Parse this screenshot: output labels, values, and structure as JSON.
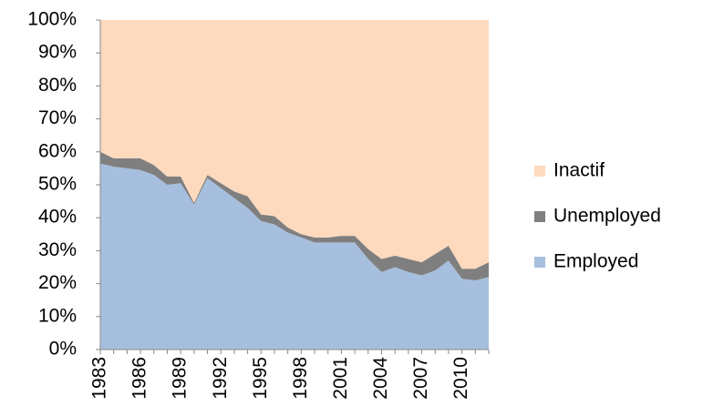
{
  "chart_data": {
    "type": "stacked_area",
    "categories": [
      "1983",
      null,
      null,
      "1986",
      null,
      null,
      "1989",
      null,
      null,
      "1992",
      null,
      null,
      "1995",
      null,
      null,
      "1998",
      null,
      null,
      "2001",
      null,
      null,
      "2004",
      null,
      null,
      "2007",
      null,
      null,
      "2010",
      null,
      null
    ],
    "series": [
      {
        "name": "Employed",
        "color": "#a7bfde",
        "values": [
          56.5,
          55.5,
          55,
          54.5,
          53,
          50,
          50.5,
          44,
          52,
          49,
          46,
          43,
          39,
          38,
          35.5,
          34,
          32.5,
          32.5,
          32.5,
          32.5,
          27.5,
          23.5,
          25,
          23.5,
          22.5,
          24,
          27,
          21.5,
          21,
          22
        ]
      },
      {
        "name": "Unemployed",
        "color": "#7f7f7f",
        "values": [
          3.5,
          2.5,
          3,
          3.5,
          3,
          2.5,
          2,
          0.5,
          1,
          1.5,
          2,
          3.5,
          2,
          2.5,
          1.5,
          1,
          1.5,
          1.5,
          2,
          2,
          3,
          4,
          3.5,
          4,
          4,
          5,
          4.5,
          3,
          3.5,
          4.5
        ]
      },
      {
        "name": "Inactif",
        "color": "#fdd9bd",
        "values": [
          40,
          42,
          42,
          42,
          44,
          47.5,
          47.5,
          55.5,
          47,
          49.5,
          52,
          53.5,
          59,
          59.5,
          63,
          65,
          66,
          66,
          65.5,
          65.5,
          69.5,
          72.5,
          71.5,
          72.5,
          73.5,
          71,
          68.5,
          75.5,
          75.5,
          73.5
        ]
      }
    ],
    "ylim": [
      0,
      100
    ],
    "yticks": [
      {
        "value": 0,
        "label": "0%"
      },
      {
        "value": 10,
        "label": "10%"
      },
      {
        "value": 20,
        "label": "20%"
      },
      {
        "value": 30,
        "label": "30%"
      },
      {
        "value": 40,
        "label": "40%"
      },
      {
        "value": 50,
        "label": "50%"
      },
      {
        "value": 60,
        "label": "60%"
      },
      {
        "value": 70,
        "label": "70%"
      },
      {
        "value": 80,
        "label": "80%"
      },
      {
        "value": 90,
        "label": "90%"
      },
      {
        "value": 100,
        "label": "100%"
      }
    ],
    "legend": "right"
  }
}
